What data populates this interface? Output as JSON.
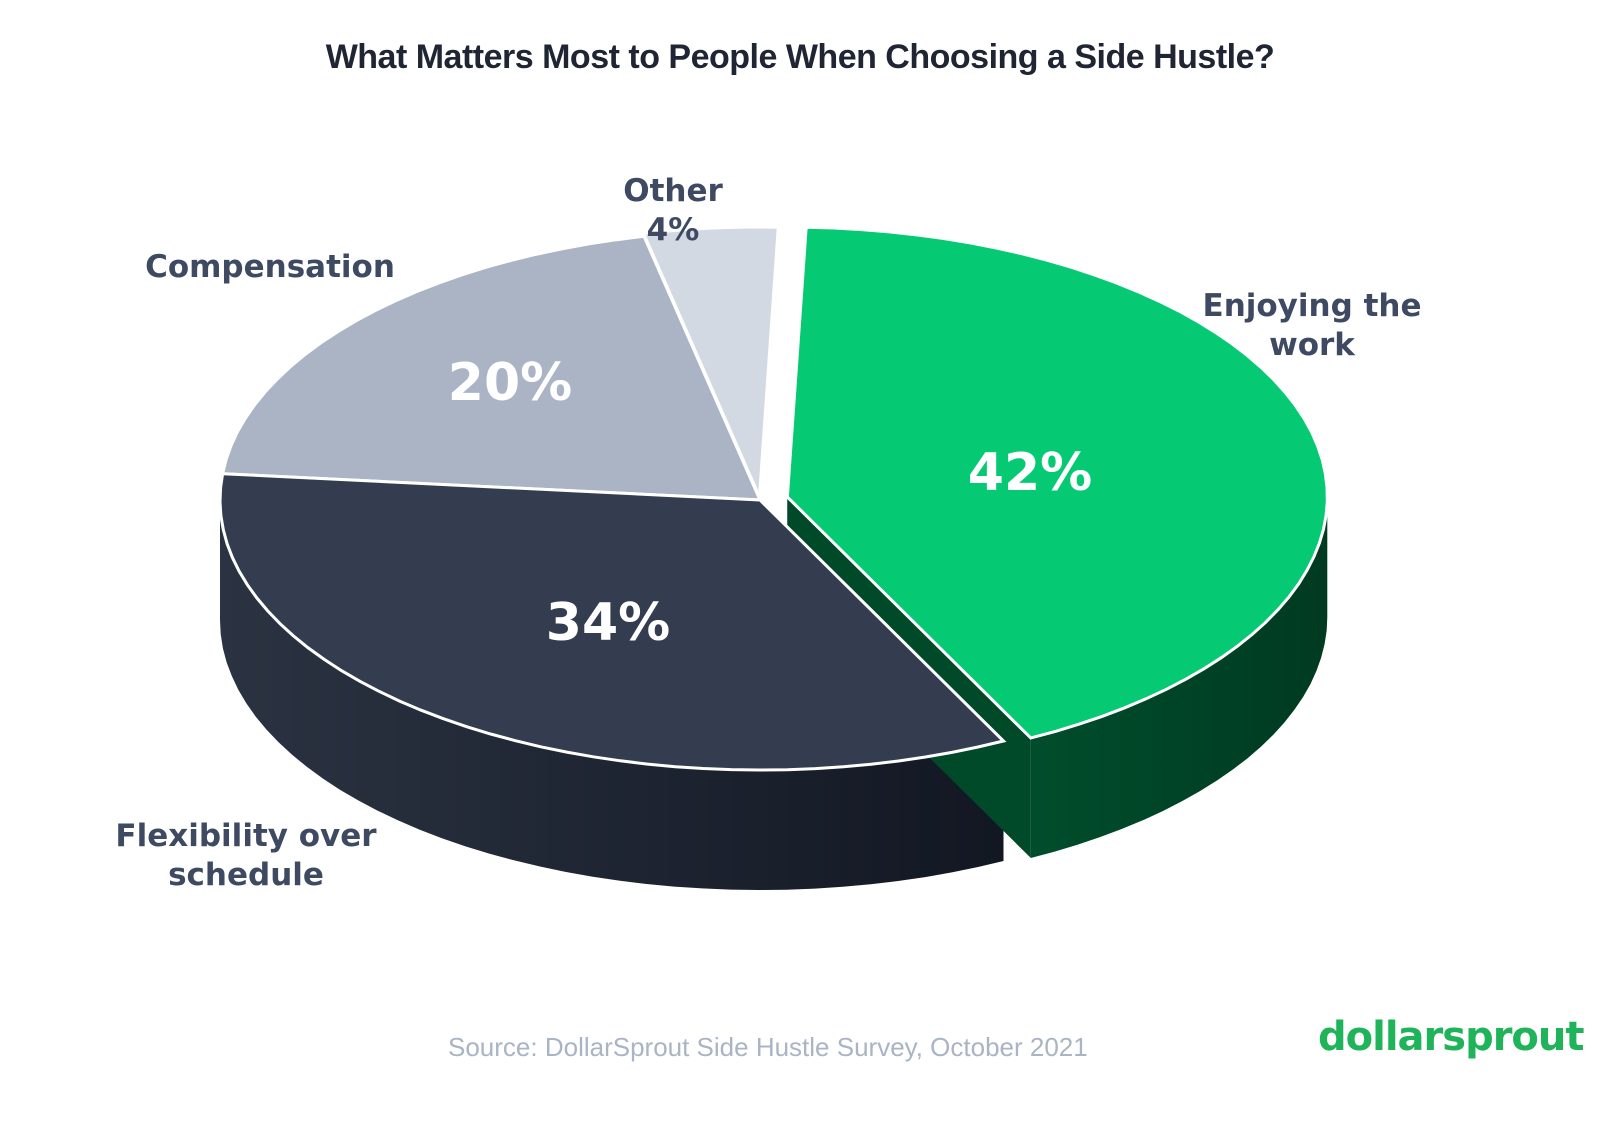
{
  "chart_data": {
    "type": "pie",
    "title": "What Matters Most to People When Choosing a Side Hustle?",
    "slices": [
      {
        "label": "Enjoying the work",
        "label_lines": [
          "Enjoying the",
          "work"
        ],
        "value": 42,
        "value_label": "42%",
        "color": "#06c974",
        "side_color": "#014a2b"
      },
      {
        "label": "Flexibility over schedule",
        "label_lines": [
          "Flexibility over",
          "schedule"
        ],
        "value": 34,
        "value_label": "34%",
        "color": "#333d4f",
        "side_color": "#1d2330"
      },
      {
        "label": "Compensation",
        "label_lines": [
          "Compensation"
        ],
        "value": 20,
        "value_label": "20%",
        "color": "#aab4c5",
        "side_color": "#4b4f57"
      },
      {
        "label": "Other",
        "label_lines": [
          "Other",
          "4%"
        ],
        "value": 4,
        "value_label": "",
        "color": "#d3d9e3",
        "side_color": "#8a919c"
      }
    ],
    "style": "3d-exploded",
    "legend": "none"
  },
  "source": "Source: DollarSprout Side Hustle Survey, October 2021",
  "brand": "dollarsprout"
}
